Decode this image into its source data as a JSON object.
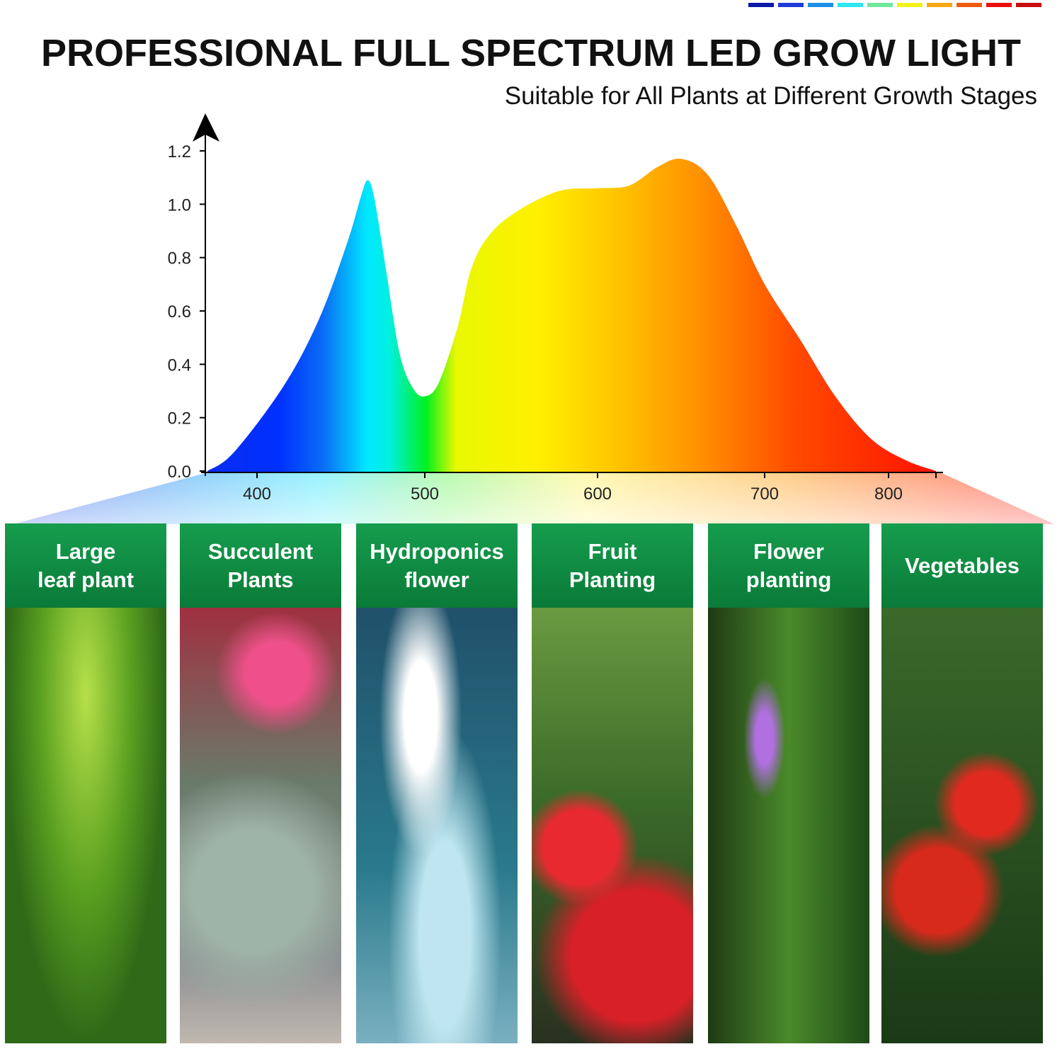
{
  "header": {
    "title": "PROFESSIONAL FULL SPECTRUM LED GROW LIGHT",
    "subtitle": "Suitable for All Plants at Different Growth Stages",
    "color_bars": [
      "#0c1aa8",
      "#1f3ad6",
      "#1e8fe6",
      "#2ee6f0",
      "#6ee89a",
      "#f2f21a",
      "#f8a812",
      "#f05a10",
      "#ec0e0e",
      "#c80c10"
    ]
  },
  "chart_data": {
    "type": "area",
    "title": "",
    "xlabel": "",
    "ylabel": "",
    "x_ticks": [
      "400",
      "500",
      "600",
      "700",
      "800"
    ],
    "y_ticks": [
      "0.0",
      "0.2",
      "0.4",
      "0.6",
      "0.8",
      "1.0",
      "1.2"
    ],
    "ylim": [
      0,
      1.2
    ],
    "grid": false,
    "x": [
      370,
      386,
      416,
      437,
      454,
      462,
      466,
      470,
      477,
      485,
      493,
      500,
      508,
      519,
      527,
      538,
      555,
      578,
      600,
      619,
      636,
      650,
      666,
      683,
      700,
      729,
      757,
      786,
      814,
      838
    ],
    "values": [
      0,
      0.07,
      0.32,
      0.57,
      0.86,
      1.03,
      1.09,
      1.02,
      0.75,
      0.44,
      0.31,
      0.28,
      0.33,
      0.54,
      0.76,
      0.89,
      0.98,
      1.05,
      1.06,
      1.07,
      1.14,
      1.17,
      1.11,
      0.92,
      0.7,
      0.49,
      0.28,
      0.12,
      0.04,
      0
    ],
    "fill": "spectrum gradient blue-cyan-green-yellow-orange-red"
  },
  "cards": [
    {
      "label": "Large\nleaf plant",
      "photo": "green seedlings"
    },
    {
      "label": "Succulent\nPlants",
      "photo": "succulents"
    },
    {
      "label": "Hydroponics\nflower",
      "photo": "white flowers in glass vase"
    },
    {
      "label": "Fruit\nPlanting",
      "photo": "strawberries"
    },
    {
      "label": "Flower\nplanting",
      "photo": "purple flower stem"
    },
    {
      "label": "Vegetables",
      "photo": "tomatoes"
    }
  ]
}
